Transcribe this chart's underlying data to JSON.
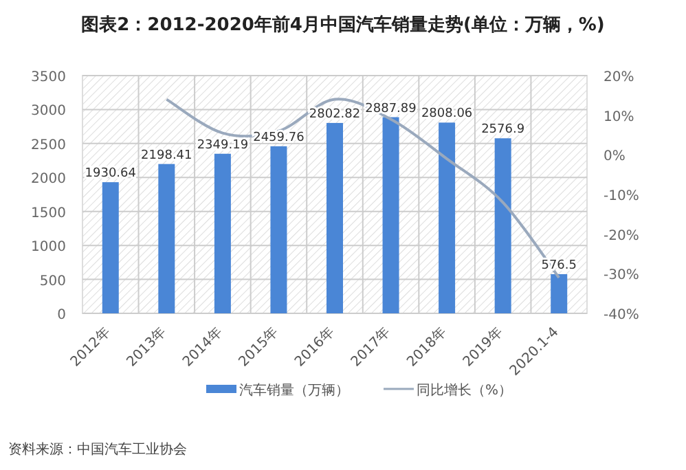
{
  "chart_data": {
    "type": "bar",
    "title": "图表2：2012-2020年前4月中国汽车销量走势(单位：万辆，%)",
    "categories": [
      "2012年",
      "2013年",
      "2014年",
      "2015年",
      "2016年",
      "2017年",
      "2018年",
      "2019年",
      "2020.1-4"
    ],
    "series": [
      {
        "name": "汽车销量（万辆）",
        "color": "#4a86d6",
        "values": [
          1930.64,
          2198.41,
          2349.19,
          2459.76,
          2802.82,
          2887.89,
          2808.06,
          2576.9,
          576.5
        ],
        "value_labels": [
          "1930.64",
          "2198.41",
          "2349.19",
          "2459.76",
          "2802.82",
          "2887.89",
          "2808.06",
          "2576.9",
          "576.5"
        ]
      },
      {
        "name": "同比增长（%）",
        "type": "line",
        "axis": "y2",
        "color": "#9aa9bd",
        "values": [
          null,
          14,
          5.5,
          6,
          14,
          9,
          -1,
          -12,
          -31
        ]
      }
    ],
    "ylim": [
      0,
      3500
    ],
    "yticks": [
      0,
      500,
      1000,
      1500,
      2000,
      2500,
      3000,
      3500
    ],
    "y2lim": [
      -40,
      20
    ],
    "y2ticks": [
      {
        "value": -40,
        "label": "-40%"
      },
      {
        "value": -30,
        "label": "-30%"
      },
      {
        "value": -20,
        "label": "-20%"
      },
      {
        "value": -10,
        "label": "-10%"
      },
      {
        "value": 0,
        "label": "0%"
      },
      {
        "value": 10,
        "label": "10%"
      },
      {
        "value": 20,
        "label": "20%"
      }
    ],
    "grid": true,
    "legend": "bottom",
    "annotations": [
      "资料来源：中国汽车工业协会"
    ]
  }
}
